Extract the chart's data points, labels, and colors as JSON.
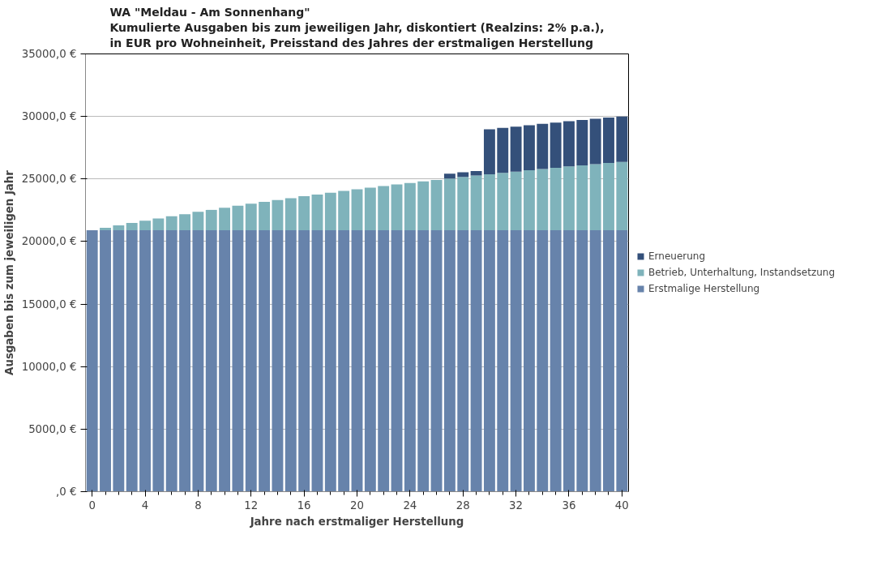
{
  "chart_data": {
    "type": "bar",
    "stacked": true,
    "title": "WA \"Meldau - Am Sonnenhang\"\nKumulierte Ausgaben bis zum jeweiligen Jahr, diskontiert (Realzins: 2% p.a.),\nin EUR pro Wohneinheit, Preisstand des Jahres der erstmaligen Herstellung",
    "xlabel": "Jahre nach erstmaliger Herstellung",
    "ylabel": "Ausgaben bis zum jeweiligen Jahr",
    "x": [
      0,
      1,
      2,
      3,
      4,
      5,
      6,
      7,
      8,
      9,
      10,
      11,
      12,
      13,
      14,
      15,
      16,
      17,
      18,
      19,
      20,
      21,
      22,
      23,
      24,
      25,
      26,
      27,
      28,
      29,
      30,
      31,
      32,
      33,
      34,
      35,
      36,
      37,
      38,
      39,
      40
    ],
    "series": [
      {
        "name": "Erstmalige Herstellung",
        "color": "#6783ab",
        "values": [
          20900,
          20900,
          20900,
          20900,
          20900,
          20900,
          20900,
          20900,
          20900,
          20900,
          20900,
          20900,
          20900,
          20900,
          20900,
          20900,
          20900,
          20900,
          20900,
          20900,
          20900,
          20900,
          20900,
          20900,
          20900,
          20900,
          20900,
          20900,
          20900,
          20900,
          20900,
          20900,
          20900,
          20900,
          20900,
          20900,
          20900,
          20900,
          20900,
          20900,
          20900
        ]
      },
      {
        "name": "Betrieb, Unterhaltung, Instandsetzung",
        "color": "#7fb3bb",
        "values": [
          0,
          200,
          390,
          580,
          760,
          940,
          1120,
          1290,
          1470,
          1630,
          1800,
          1960,
          2120,
          2270,
          2420,
          2570,
          2720,
          2860,
          3000,
          3140,
          3270,
          3400,
          3530,
          3660,
          3780,
          3910,
          4020,
          4140,
          4260,
          4370,
          4480,
          4590,
          4690,
          4800,
          4900,
          5000,
          5100,
          5190,
          5290,
          5380,
          5470
        ]
      },
      {
        "name": "Erneuerung",
        "color": "#34507a",
        "values": [
          0,
          0,
          0,
          0,
          0,
          0,
          0,
          0,
          0,
          0,
          0,
          0,
          0,
          0,
          0,
          0,
          0,
          0,
          0,
          0,
          0,
          0,
          0,
          0,
          0,
          0,
          0,
          380,
          370,
          360,
          3590,
          3590,
          3600,
          3600,
          3610,
          3610,
          3620,
          3620,
          3620,
          3630,
          3630
        ]
      }
    ],
    "xlim": [
      -0.5,
      40.5
    ],
    "xticks": [
      0,
      4,
      8,
      12,
      16,
      20,
      24,
      28,
      32,
      36,
      40
    ],
    "ylim": [
      0,
      35000
    ],
    "yticks": [
      {
        "value": 0,
        "label": ",0 €"
      },
      {
        "value": 5000,
        "label": "5000,0 €"
      },
      {
        "value": 10000,
        "label": "10000,0 €"
      },
      {
        "value": 15000,
        "label": "15000,0 €"
      },
      {
        "value": 20000,
        "label": "20000,0 €"
      },
      {
        "value": 25000,
        "label": "25000,0 €"
      },
      {
        "value": 30000,
        "label": "30000,0 €"
      },
      {
        "value": 35000,
        "label": "35000,0 €"
      }
    ],
    "grid": "y",
    "legend": "right"
  }
}
